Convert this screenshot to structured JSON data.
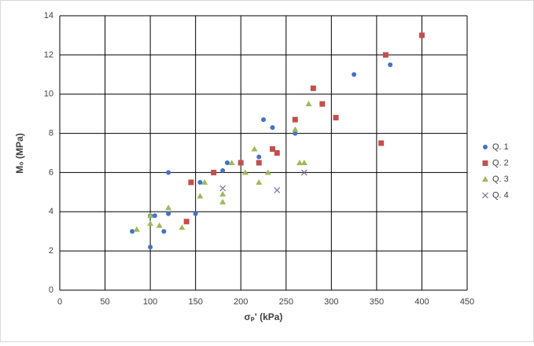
{
  "chart_data": {
    "type": "scatter",
    "x_label": "σₚ' (kPa)",
    "y_label": "M₀ (MPa)",
    "xlim": [
      0,
      450
    ],
    "xticks": [
      0,
      50,
      100,
      150,
      200,
      250,
      300,
      350,
      400,
      450
    ],
    "ylim": [
      0,
      14
    ],
    "yticks": [
      0,
      2,
      4,
      6,
      8,
      10,
      12,
      14
    ],
    "grid": true,
    "legend": "right",
    "series": [
      {
        "name": "Q. 1",
        "color": "#4472c4",
        "marker": "circle",
        "x": [
          80,
          100,
          100,
          105,
          115,
          120,
          120,
          150,
          155,
          180,
          185,
          220,
          225,
          235,
          260,
          325,
          365
        ],
        "values": [
          3.0,
          2.2,
          3.8,
          3.8,
          3.0,
          3.9,
          6.0,
          3.9,
          5.5,
          6.1,
          6.5,
          6.8,
          8.7,
          8.3,
          8.0,
          11.0,
          11.5
        ]
      },
      {
        "name": "Q. 2",
        "color": "#c0504d",
        "marker": "square",
        "x": [
          140,
          145,
          170,
          200,
          220,
          235,
          240,
          260,
          280,
          290,
          305,
          355,
          360,
          400
        ],
        "values": [
          3.5,
          5.5,
          6.0,
          6.5,
          6.5,
          7.2,
          7.0,
          8.7,
          10.3,
          9.5,
          8.8,
          7.5,
          12.0,
          13.0
        ]
      },
      {
        "name": "Q. 3",
        "color": "#9bbb59",
        "marker": "triangle",
        "x": [
          85,
          100,
          100,
          110,
          120,
          135,
          155,
          160,
          180,
          180,
          190,
          205,
          215,
          220,
          230,
          260,
          265,
          270,
          275
        ],
        "values": [
          3.1,
          3.4,
          3.8,
          3.3,
          4.2,
          3.2,
          4.8,
          5.5,
          4.9,
          4.5,
          6.5,
          6.0,
          7.2,
          5.5,
          6.0,
          8.2,
          6.5,
          6.5,
          9.5
        ]
      },
      {
        "name": "Q. 4",
        "color": "#8064a2",
        "marker": "x",
        "x": [
          180,
          240,
          270
        ],
        "values": [
          5.2,
          5.1,
          6.0
        ]
      }
    ]
  }
}
